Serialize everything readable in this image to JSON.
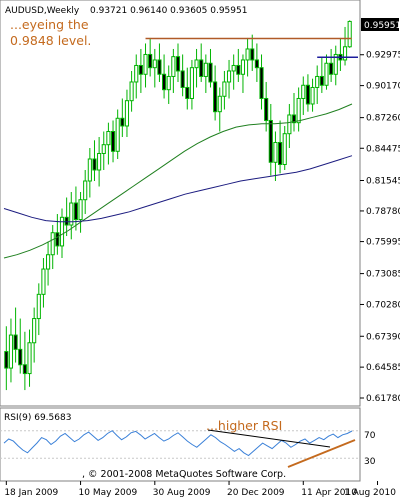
{
  "chart_data": {
    "type": "candlestick",
    "symbol": "AUDUSD,Weekly",
    "ohlc_readout": "0.93721 0.96140 0.93605 0.95951",
    "last_price_label": "0.95951",
    "y_ticks": [
      "0.95951",
      "0.92975",
      "0.90170",
      "0.87260",
      "0.84475",
      "0.81545",
      "0.78780",
      "0.75995",
      "0.73085",
      "0.70280",
      "0.67390",
      "0.64585",
      "0.61780"
    ],
    "y_tick_values": [
      0.95951,
      0.92975,
      0.9017,
      0.8726,
      0.84475,
      0.81545,
      0.7878,
      0.75995,
      0.73085,
      0.7028,
      0.6739,
      0.64585,
      0.6178
    ],
    "ylim": [
      0.6178,
      0.9595
    ],
    "x_ticks": [
      "18 Jan 2009",
      "10 May 2009",
      "30 Aug 2009",
      "20 Dec 2009",
      "11 Apr 2010",
      "1 Aug 2010"
    ],
    "x_tick_index": [
      0,
      16,
      32,
      48,
      64,
      80
    ],
    "annotations": {
      "main": [
        "...eyeing the",
        "0.9848 level."
      ],
      "rsi": "...higher RSI"
    },
    "copyright": ", © 2001-2008 MetaQuotes Software Corp.",
    "candles": [
      [
        0.66,
        0.683,
        0.625,
        0.645
      ],
      [
        0.645,
        0.69,
        0.632,
        0.675
      ],
      [
        0.675,
        0.7,
        0.65,
        0.662
      ],
      [
        0.662,
        0.69,
        0.64,
        0.648
      ],
      [
        0.648,
        0.678,
        0.625,
        0.64
      ],
      [
        0.64,
        0.68,
        0.628,
        0.668
      ],
      [
        0.668,
        0.7,
        0.65,
        0.69
      ],
      [
        0.69,
        0.722,
        0.675,
        0.712
      ],
      [
        0.712,
        0.745,
        0.7,
        0.735
      ],
      [
        0.735,
        0.76,
        0.72,
        0.748
      ],
      [
        0.748,
        0.775,
        0.735,
        0.768
      ],
      [
        0.768,
        0.785,
        0.748,
        0.756
      ],
      [
        0.756,
        0.79,
        0.745,
        0.782
      ],
      [
        0.782,
        0.8,
        0.765,
        0.775
      ],
      [
        0.775,
        0.805,
        0.762,
        0.795
      ],
      [
        0.795,
        0.81,
        0.77,
        0.78
      ],
      [
        0.78,
        0.805,
        0.768,
        0.798
      ],
      [
        0.798,
        0.825,
        0.785,
        0.815
      ],
      [
        0.815,
        0.845,
        0.8,
        0.835
      ],
      [
        0.835,
        0.852,
        0.815,
        0.825
      ],
      [
        0.825,
        0.855,
        0.81,
        0.84
      ],
      [
        0.84,
        0.86,
        0.825,
        0.848
      ],
      [
        0.848,
        0.868,
        0.83,
        0.86
      ],
      [
        0.86,
        0.87,
        0.832,
        0.842
      ],
      [
        0.842,
        0.88,
        0.835,
        0.872
      ],
      [
        0.872,
        0.89,
        0.855,
        0.865
      ],
      [
        0.865,
        0.898,
        0.855,
        0.888
      ],
      [
        0.888,
        0.915,
        0.878,
        0.905
      ],
      [
        0.905,
        0.93,
        0.89,
        0.92
      ],
      [
        0.92,
        0.935,
        0.895,
        0.912
      ],
      [
        0.912,
        0.94,
        0.9,
        0.93
      ],
      [
        0.93,
        0.945,
        0.91,
        0.918
      ],
      [
        0.918,
        0.935,
        0.9,
        0.925
      ],
      [
        0.925,
        0.94,
        0.905,
        0.912
      ],
      [
        0.912,
        0.93,
        0.89,
        0.898
      ],
      [
        0.898,
        0.92,
        0.885,
        0.91
      ],
      [
        0.91,
        0.935,
        0.895,
        0.928
      ],
      [
        0.928,
        0.94,
        0.905,
        0.915
      ],
      [
        0.915,
        0.93,
        0.892,
        0.9
      ],
      [
        0.9,
        0.918,
        0.88,
        0.89
      ],
      [
        0.89,
        0.925,
        0.88,
        0.918
      ],
      [
        0.918,
        0.935,
        0.9,
        0.925
      ],
      [
        0.925,
        0.94,
        0.905,
        0.91
      ],
      [
        0.91,
        0.93,
        0.895,
        0.922
      ],
      [
        0.922,
        0.935,
        0.9,
        0.905
      ],
      [
        0.905,
        0.92,
        0.87,
        0.878
      ],
      [
        0.878,
        0.9,
        0.86,
        0.892
      ],
      [
        0.892,
        0.915,
        0.88,
        0.905
      ],
      [
        0.905,
        0.925,
        0.89,
        0.915
      ],
      [
        0.915,
        0.93,
        0.898,
        0.92
      ],
      [
        0.92,
        0.935,
        0.905,
        0.912
      ],
      [
        0.912,
        0.93,
        0.895,
        0.925
      ],
      [
        0.925,
        0.945,
        0.91,
        0.935
      ],
      [
        0.935,
        0.948,
        0.915,
        0.925
      ],
      [
        0.925,
        0.94,
        0.905,
        0.918
      ],
      [
        0.918,
        0.93,
        0.88,
        0.89
      ],
      [
        0.89,
        0.905,
        0.86,
        0.87
      ],
      [
        0.87,
        0.885,
        0.82,
        0.832
      ],
      [
        0.832,
        0.86,
        0.815,
        0.85
      ],
      [
        0.85,
        0.87,
        0.822,
        0.83
      ],
      [
        0.83,
        0.865,
        0.825,
        0.858
      ],
      [
        0.858,
        0.885,
        0.845,
        0.875
      ],
      [
        0.875,
        0.895,
        0.86,
        0.868
      ],
      [
        0.868,
        0.9,
        0.86,
        0.89
      ],
      [
        0.89,
        0.91,
        0.875,
        0.902
      ],
      [
        0.902,
        0.912,
        0.878,
        0.885
      ],
      [
        0.885,
        0.908,
        0.878,
        0.9
      ],
      [
        0.9,
        0.92,
        0.885,
        0.91
      ],
      [
        0.91,
        0.928,
        0.895,
        0.902
      ],
      [
        0.902,
        0.93,
        0.898,
        0.922
      ],
      [
        0.922,
        0.935,
        0.905,
        0.912
      ],
      [
        0.912,
        0.938,
        0.902,
        0.93
      ],
      [
        0.93,
        0.945,
        0.915,
        0.925
      ],
      [
        0.925,
        0.955,
        0.92,
        0.937
      ],
      [
        0.937,
        0.961,
        0.936,
        0.96
      ]
    ],
    "ma_short": [
      0.745,
      0.748,
      0.752,
      0.757,
      0.763,
      0.77,
      0.778,
      0.786,
      0.794,
      0.802,
      0.81,
      0.818,
      0.826,
      0.834,
      0.842,
      0.849,
      0.855,
      0.86,
      0.864,
      0.866,
      0.867,
      0.867,
      0.868,
      0.87,
      0.873,
      0.876,
      0.88,
      0.885
    ],
    "ma_long": [
      0.79,
      0.786,
      0.782,
      0.779,
      0.778,
      0.778,
      0.779,
      0.781,
      0.784,
      0.787,
      0.791,
      0.795,
      0.799,
      0.803,
      0.806,
      0.809,
      0.812,
      0.815,
      0.817,
      0.819,
      0.821,
      0.823,
      0.826,
      0.83,
      0.834,
      0.838
    ],
    "resistance_level": 0.9445,
    "support_level": 0.9275,
    "rsi": {
      "label": "RSI(9) 69.5683",
      "levels": [
        70,
        30
      ],
      "level_labels": [
        "70",
        "30"
      ],
      "values": [
        52,
        58,
        55,
        48,
        42,
        38,
        45,
        52,
        60,
        57,
        50,
        55,
        62,
        66,
        60,
        54,
        58,
        64,
        68,
        62,
        56,
        60,
        66,
        70,
        63,
        57,
        61,
        67,
        69,
        64,
        58,
        62,
        66,
        60,
        55,
        58,
        63,
        67,
        61,
        55,
        50,
        46,
        52,
        58,
        64,
        60,
        54,
        50,
        45,
        40,
        44,
        38,
        34,
        40,
        46,
        52,
        48,
        44,
        50,
        56,
        52,
        46,
        50,
        55,
        58,
        52,
        56,
        60,
        57,
        62,
        65,
        60,
        64,
        66,
        69.6
      ]
    }
  },
  "colors": {
    "candle": "#00b400",
    "resistance": "#b05a28",
    "support": "#1c1c9c",
    "ma_short": "#208020",
    "ma_long": "#1c1c80",
    "rsi_line": "#3a80d8",
    "annotation_text": "#c46a1e",
    "grid": "#c8c8c8"
  }
}
